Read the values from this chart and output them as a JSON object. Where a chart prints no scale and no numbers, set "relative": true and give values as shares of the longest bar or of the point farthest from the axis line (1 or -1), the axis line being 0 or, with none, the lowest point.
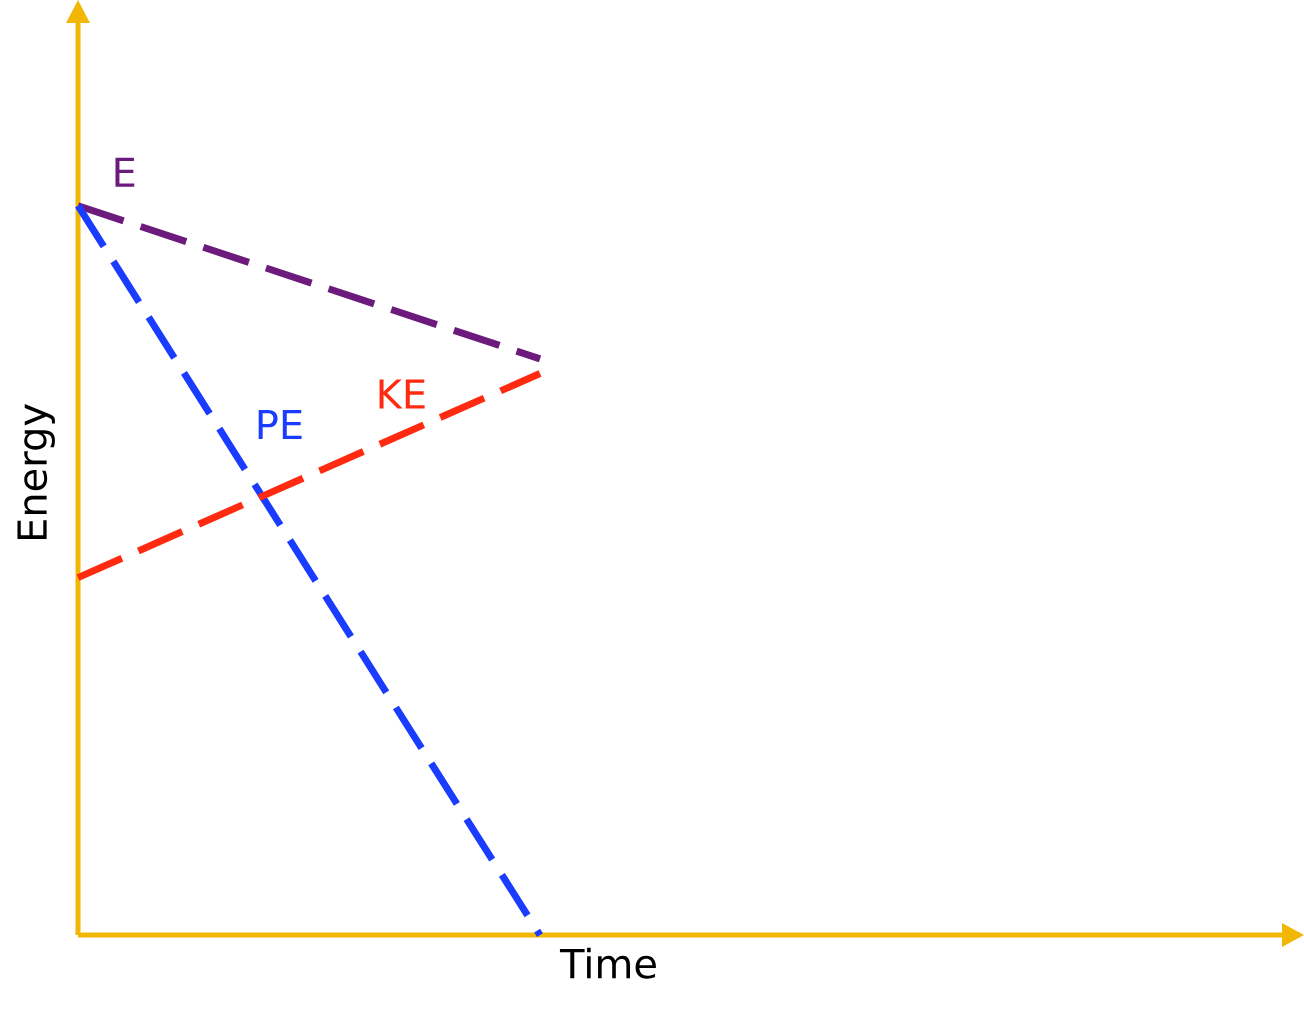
{
  "chart_data": {
    "type": "line",
    "relative": true,
    "xlabel": "Time",
    "ylabel": "Energy",
    "categories": [
      null,
      null
    ],
    "line_style": "dashed",
    "series": [
      {
        "name": "E",
        "color": "#6c1a7c",
        "values": [
          1,
          0.79
        ]
      },
      {
        "name": "PE",
        "color": "#1a3cff",
        "values": [
          1,
          0
        ]
      },
      {
        "name": "KE",
        "color": "#ff2a10",
        "values": [
          0.49,
          0.77
        ]
      }
    ]
  }
}
